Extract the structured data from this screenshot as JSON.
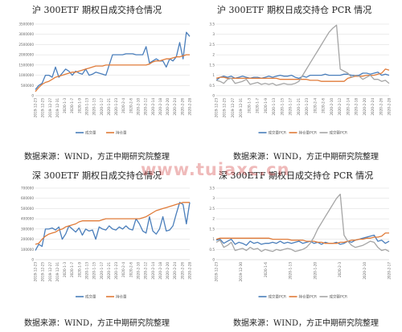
{
  "titles": {
    "tl": "沪 300ETF 期权日成交持仓情况",
    "tr": "沪 300ETF 期权日成交持仓 PCR 情况",
    "bl": "深 300ETF 期权日成交持仓情况",
    "br": "深 300ETF 期权日成交持仓 PCR 情况"
  },
  "source_note": "数据来源：WIND，方正中期研究院整理",
  "watermark": "www.tuiaxc.cn",
  "colors": {
    "blue": "#4a7ebb",
    "orange": "#e07b39",
    "gray": "#a5a5a5",
    "grid": "#d9d9d9",
    "axis": "#bfbfbf"
  },
  "chart_data": [
    {
      "id": "tl",
      "type": "line",
      "title": "沪 300ETF 期权日成交持仓情况",
      "ylim": [
        0,
        3500000
      ],
      "yticks": [
        0,
        500000,
        1000000,
        1500000,
        2000000,
        2500000,
        3000000,
        3500000
      ],
      "ytick_labels": [
        "0",
        "500000",
        "1000000",
        "1500000",
        "2000000",
        "2500000",
        "3000000",
        "3500000"
      ],
      "xtick_labels": [
        "2019-12-23",
        "2019-12-25",
        "2019-12-27",
        "2019-12-31",
        "2020-1-3",
        "2020-1-7",
        "2020-1-9",
        "2020-1-13",
        "2020-1-15",
        "2020-1-17",
        "2020-1-21",
        "2020-1-23",
        "2020-2-4",
        "2020-2-6",
        "2020-2-10",
        "2020-2-12",
        "2020-2-14",
        "2020-2-18",
        "2020-2-20",
        "2020-2-24",
        "2020-2-26",
        "2020-2-28"
      ],
      "legend": "bottom",
      "series": [
        {
          "name": "成交量",
          "color": "blue",
          "values": [
            300000,
            500000,
            600000,
            1000000,
            1000000,
            900000,
            1400000,
            900000,
            1100000,
            1300000,
            1200000,
            1000000,
            1200000,
            1100000,
            1050000,
            1300000,
            1000000,
            1050000,
            1150000,
            1100000,
            1050000,
            1000000,
            1500000,
            2000000,
            2000000,
            2000000,
            2000000,
            2050000,
            2050000,
            2050000,
            2000000,
            2000000,
            2000000,
            2400000,
            1600000,
            1700000,
            1800000,
            1700000,
            1700000,
            1400000,
            1800000,
            1700000,
            1900000,
            2600000,
            1800000,
            3100000,
            2900000
          ]
        },
        {
          "name": "持仓量",
          "color": "orange",
          "values": [
            200000,
            400000,
            550000,
            650000,
            700000,
            800000,
            900000,
            950000,
            1000000,
            1050000,
            1100000,
            1150000,
            1150000,
            1200000,
            1250000,
            1300000,
            1350000,
            1400000,
            1450000,
            1450000,
            1450000,
            1500000,
            1500000,
            1500000,
            1500000,
            1500000,
            1500000,
            1500000,
            1500000,
            1500000,
            1500000,
            1500000,
            1500000,
            1500000,
            1550000,
            1650000,
            1700000,
            1700000,
            1750000,
            1800000,
            1800000,
            1850000,
            1900000,
            1900000,
            1950000,
            2000000,
            2000000
          ]
        }
      ]
    },
    {
      "id": "tr",
      "type": "line",
      "title": "沪 300ETF 期权日成交持仓 PCR 情况",
      "ylim": [
        0,
        3.5
      ],
      "yticks": [
        0,
        0.5,
        1,
        1.5,
        2,
        2.5,
        3,
        3.5
      ],
      "ytick_labels": [
        "0",
        "0.5",
        "1",
        "1.5",
        "2",
        "2.5",
        "3",
        "3.5"
      ],
      "xtick_labels": [
        "2019-12-23",
        "2019-12-25",
        "2019-12-27",
        "2019-12-31",
        "2020-1-3",
        "2020-1-7",
        "2020-1-9",
        "2020-1-13",
        "2020-1-15",
        "2020-1-17",
        "2020-1-21",
        "2020-1-23",
        "2020-2-4",
        "2020-2-6",
        "2020-2-10",
        "2020-2-12",
        "2020-2-14",
        "2020-2-18",
        "2020-2-20",
        "2020-2-24",
        "2020-2-26",
        "2020-2-28"
      ],
      "legend": "bottom",
      "series": [
        {
          "name": "成交量PCR",
          "color": "blue",
          "values": [
            0.75,
            0.9,
            0.95,
            0.9,
            0.95,
            0.85,
            0.9,
            0.95,
            0.9,
            0.85,
            0.9,
            0.9,
            0.85,
            0.9,
            0.95,
            0.9,
            0.95,
            1.0,
            0.95,
            0.95,
            1.0,
            0.9,
            0.85,
            0.95,
            0.9,
            1.0,
            1.0,
            1.0,
            1.0,
            1.05,
            1.0,
            1.0,
            1.0,
            1.0,
            1.05,
            1.05,
            1.0,
            1.0,
            1.0,
            1.1,
            1.1,
            1.05,
            1.1,
            1.15,
            1.0,
            1.05,
            1.0
          ]
        },
        {
          "name": "持仓量PCR",
          "color": "orange",
          "values": [
            0.85,
            0.9,
            0.9,
            0.85,
            0.85,
            0.85,
            0.85,
            0.85,
            0.85,
            0.85,
            0.85,
            0.85,
            0.85,
            0.85,
            0.85,
            0.85,
            0.85,
            0.8,
            0.8,
            0.8,
            0.8,
            0.8,
            0.8,
            0.8,
            0.8,
            0.75,
            0.75,
            0.75,
            0.7,
            0.7,
            0.7,
            0.7,
            0.7,
            0.7,
            0.7,
            0.85,
            0.9,
            0.95,
            0.95,
            0.95,
            1.0,
            1.0,
            1.0,
            1.05,
            1.1,
            1.3,
            1.25
          ]
        },
        {
          "name": "成交额PCR",
          "color": "gray",
          "values": [
            0.75,
            0.7,
            0.6,
            0.8,
            0.85,
            0.6,
            0.65,
            0.7,
            0.8,
            0.55,
            0.6,
            0.65,
            0.55,
            0.6,
            0.55,
            0.6,
            0.5,
            0.55,
            0.6,
            0.55,
            0.55,
            0.6,
            0.7,
            1.0,
            1.3,
            1.6,
            1.9,
            2.2,
            2.5,
            2.8,
            3.1,
            3.3,
            3.45,
            1.3,
            1.2,
            1.1,
            0.9,
            1.0,
            0.95,
            0.8,
            0.9,
            1.0,
            0.8,
            0.8,
            0.7,
            0.75,
            0.6
          ]
        }
      ]
    },
    {
      "id": "bl",
      "type": "line",
      "title": "深 300ETF 期权日成交持仓情况",
      "ylim": [
        0,
        700000
      ],
      "yticks": [
        0,
        100000,
        200000,
        300000,
        400000,
        500000,
        600000,
        700000
      ],
      "ytick_labels": [
        "0",
        "100000",
        "200000",
        "300000",
        "400000",
        "500000",
        "600000",
        "700000"
      ],
      "xtick_labels": [
        "2019-12-23",
        "2019-12-25",
        "2019-12-27",
        "2019-12-31",
        "2020-1-3",
        "2020-1-7",
        "2020-1-9",
        "2020-1-13",
        "2020-1-15",
        "2020-1-17",
        "2020-1-21",
        "2020-1-23",
        "2020-2-4",
        "2020-2-6",
        "2020-2-10",
        "2020-2-12",
        "2020-2-14",
        "2020-2-18",
        "2020-2-20",
        "2020-2-24",
        "2020-2-26",
        "2020-2-28"
      ],
      "legend": "bottom",
      "series": [
        {
          "name": "成交量",
          "color": "blue",
          "values": [
            90000,
            150000,
            130000,
            300000,
            300000,
            310000,
            290000,
            320000,
            200000,
            250000,
            330000,
            300000,
            270000,
            310000,
            240000,
            300000,
            280000,
            290000,
            200000,
            320000,
            300000,
            290000,
            330000,
            300000,
            290000,
            320000,
            300000,
            330000,
            300000,
            290000,
            400000,
            350000,
            280000,
            260000,
            420000,
            280000,
            250000,
            300000,
            420000,
            280000,
            290000,
            330000,
            450000,
            560000,
            540000,
            350000,
            560000
          ]
        },
        {
          "name": "持仓量",
          "color": "orange",
          "values": [
            150000,
            160000,
            200000,
            230000,
            250000,
            260000,
            270000,
            290000,
            300000,
            320000,
            330000,
            340000,
            350000,
            370000,
            380000,
            380000,
            380000,
            380000,
            380000,
            380000,
            390000,
            400000,
            400000,
            400000,
            400000,
            400000,
            400000,
            400000,
            400000,
            400000,
            400000,
            400000,
            410000,
            420000,
            440000,
            460000,
            480000,
            490000,
            500000,
            510000,
            520000,
            530000,
            540000,
            550000,
            560000,
            560000,
            560000
          ]
        }
      ]
    },
    {
      "id": "br",
      "type": "line",
      "title": "深 300ETF 期权日成交持仓 PCR 情况",
      "ylim": [
        0,
        3.5
      ],
      "yticks": [
        0,
        0.5,
        1,
        1.5,
        2,
        2.5,
        3,
        3.5
      ],
      "ytick_labels": [
        "0",
        "0.5",
        "1",
        "1.5",
        "2",
        "2.5",
        "3",
        "3.5"
      ],
      "xtick_labels": [
        "2019-12-23",
        "2019-12-30",
        "2020-1-6",
        "2020-1-13",
        "2020-1-20",
        "2020-2-3",
        "2020-2-10",
        "2020-2-17"
      ],
      "legend": "bottom",
      "series": [
        {
          "name": "成交量PCR",
          "color": "blue",
          "values": [
            0.95,
            1.0,
            0.8,
            0.9,
            1.0,
            0.75,
            0.85,
            0.8,
            0.7,
            0.9,
            0.8,
            0.85,
            0.75,
            0.8,
            0.8,
            0.85,
            0.8,
            0.9,
            0.8,
            0.85,
            0.8,
            0.85,
            0.9,
            0.8,
            0.85,
            0.9,
            0.8,
            0.85,
            0.75,
            0.85,
            0.8,
            0.8,
            0.85,
            0.75,
            0.8,
            0.9,
            0.85,
            0.95,
            1.0,
            1.05,
            1.1,
            1.15,
            1.2,
            0.9,
            0.95,
            0.8,
            0.9
          ]
        },
        {
          "name": "持仓量PCR",
          "color": "orange",
          "values": [
            1.0,
            1.05,
            1.05,
            1.05,
            1.05,
            1.05,
            1.05,
            1.05,
            1.05,
            1.05,
            1.05,
            1.05,
            1.05,
            1.05,
            1.05,
            1.0,
            1.0,
            1.0,
            1.0,
            1.0,
            0.95,
            0.95,
            0.95,
            0.95,
            0.9,
            0.9,
            0.9,
            0.85,
            0.85,
            0.8,
            0.8,
            0.8,
            0.8,
            0.85,
            0.85,
            0.9,
            0.95,
            0.95,
            1.0,
            1.0,
            1.05,
            1.05,
            1.1,
            1.1,
            1.15,
            1.3,
            1.3
          ]
        },
        {
          "name": "成交额PCR",
          "color": "gray",
          "values": [
            0.85,
            0.95,
            0.6,
            0.7,
            0.85,
            0.45,
            0.5,
            0.55,
            0.45,
            0.6,
            0.5,
            0.55,
            0.4,
            0.5,
            0.45,
            0.4,
            0.5,
            0.45,
            0.5,
            0.55,
            0.5,
            0.4,
            0.45,
            0.5,
            0.6,
            0.8,
            1.1,
            1.5,
            1.8,
            2.1,
            2.4,
            2.7,
            3.0,
            3.2,
            1.2,
            0.9,
            0.7,
            0.6,
            0.65,
            0.7,
            0.8,
            0.9,
            0.85,
            0.6,
            0.45,
            0.5,
            0.4
          ]
        }
      ]
    }
  ]
}
